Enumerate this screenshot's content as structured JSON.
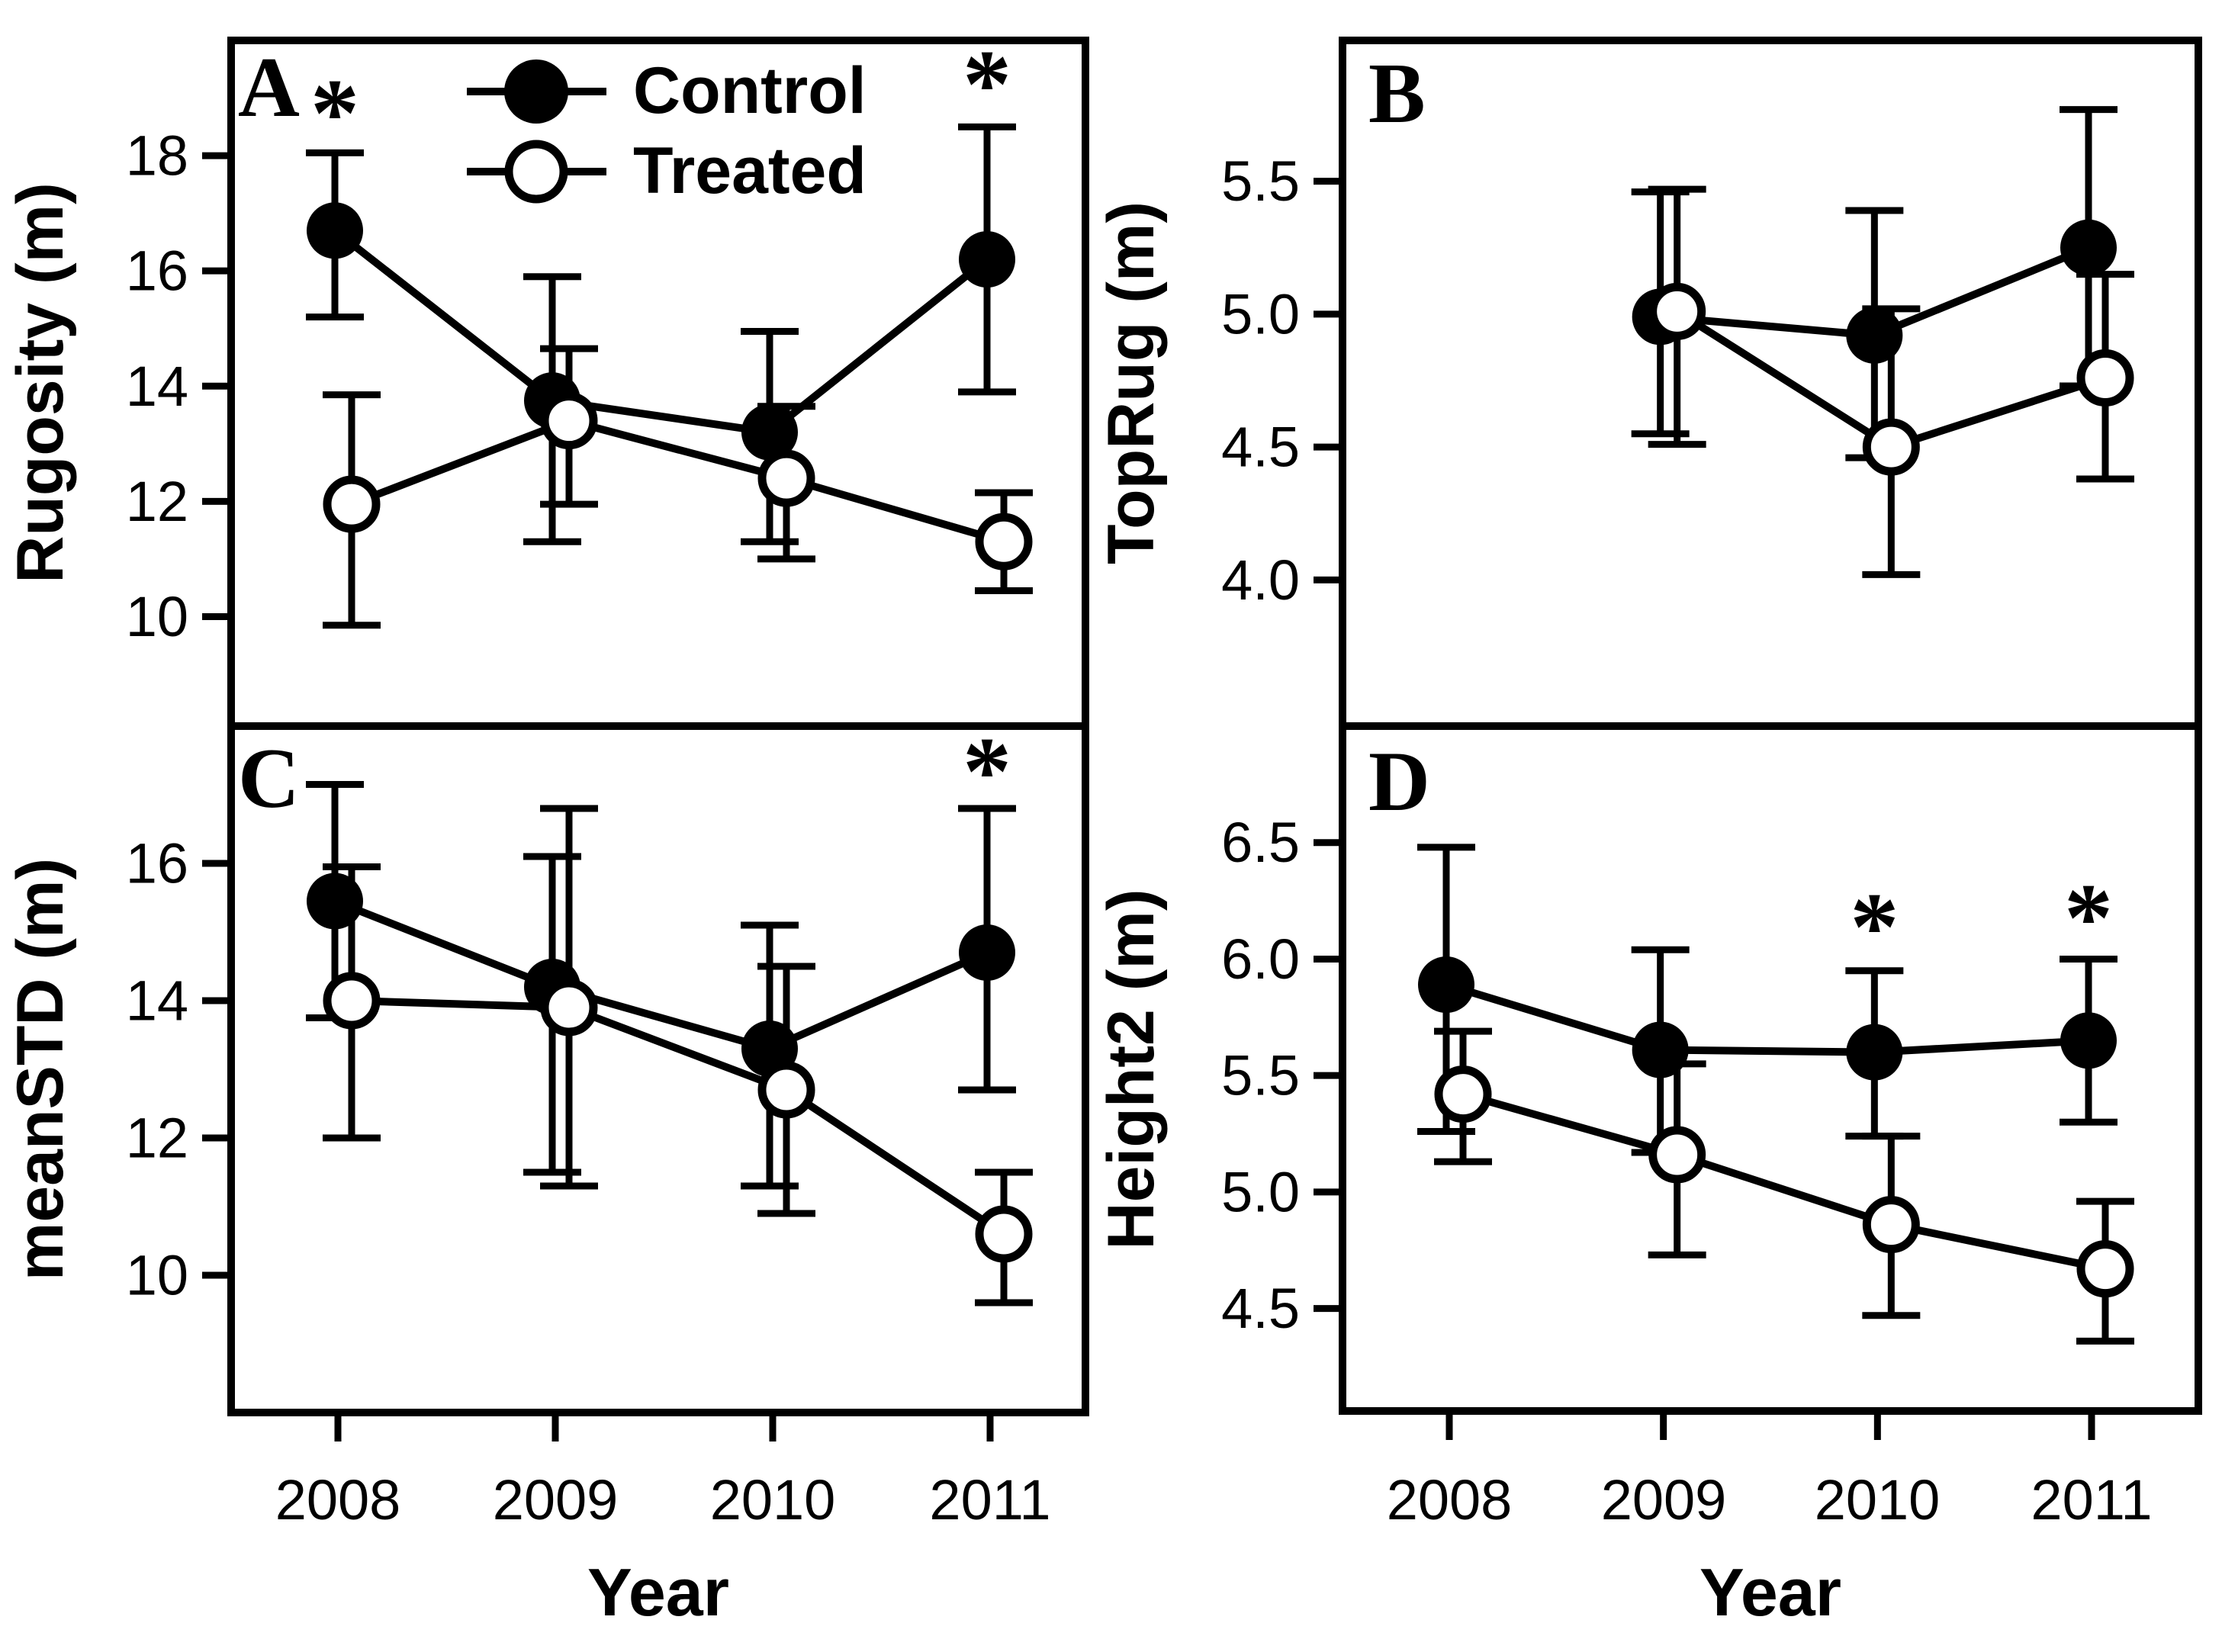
{
  "figure": {
    "background": "#ffffff",
    "ink": "#000000",
    "legend_entries": [
      {
        "label": "Control",
        "marker": "filled"
      },
      {
        "label": "Treated",
        "marker": "open"
      }
    ]
  },
  "chart_data": [
    {
      "id": "A",
      "panel_label": "A",
      "type": "line",
      "ylabel": "Rugosity (m)",
      "xlabel": "Year",
      "x": [
        2008,
        2009,
        2010,
        2011
      ],
      "xticklabels": [
        "2008",
        "2009",
        "2010",
        "2011"
      ],
      "yticks": [
        10,
        12,
        14,
        16,
        18
      ],
      "ylim": [
        8.1,
        20.0
      ],
      "grid": false,
      "legend_position": "top-center-inside",
      "series": [
        {
          "name": "Control",
          "marker": "filled",
          "values": [
            16.7,
            13.75,
            13.2,
            16.2
          ],
          "err_lo": [
            15.2,
            11.3,
            11.3,
            13.9
          ],
          "err_hi": [
            18.05,
            15.9,
            14.95,
            18.5
          ]
        },
        {
          "name": "Treated",
          "marker": "open",
          "values": [
            11.95,
            13.4,
            12.4,
            11.3
          ],
          "err_lo": [
            9.85,
            11.95,
            11.0,
            10.45
          ],
          "err_hi": [
            13.85,
            14.65,
            13.65,
            12.15
          ]
        }
      ],
      "asterisks": [
        {
          "year": 2008,
          "value": 18.75
        },
        {
          "year": 2011,
          "value": 19.25
        }
      ],
      "show_x_labels": false,
      "has_legend": true
    },
    {
      "id": "B",
      "panel_label": "B",
      "type": "line",
      "ylabel": "TopRug (m)",
      "xlabel": "Year",
      "x": [
        2008,
        2009,
        2010,
        2011
      ],
      "xticklabels": [
        "2008",
        "2009",
        "2010",
        "2011"
      ],
      "yticks": [
        4.0,
        4.5,
        5.0,
        5.5
      ],
      "ylim": [
        3.45,
        6.03
      ],
      "grid": false,
      "series": [
        {
          "name": "Control",
          "marker": "filled",
          "values": [
            null,
            4.99,
            4.92,
            5.25
          ],
          "err_lo": [
            null,
            4.55,
            4.46,
            4.73
          ],
          "err_hi": [
            null,
            5.46,
            5.39,
            5.77
          ]
        },
        {
          "name": "Treated",
          "marker": "open",
          "values": [
            null,
            5.01,
            4.5,
            4.76
          ],
          "err_lo": [
            null,
            4.51,
            4.02,
            4.38
          ],
          "err_hi": [
            null,
            5.47,
            5.02,
            5.15
          ]
        }
      ],
      "asterisks": [],
      "show_x_labels": false,
      "has_legend": false
    },
    {
      "id": "C",
      "panel_label": "C",
      "type": "line",
      "ylabel": "meanSTD (m)",
      "xlabel": "Year",
      "x": [
        2008,
        2009,
        2010,
        2011
      ],
      "xticklabels": [
        "2008",
        "2009",
        "2010",
        "2011"
      ],
      "yticks": [
        10,
        12,
        14,
        16
      ],
      "ylim": [
        8.0,
        18.0
      ],
      "grid": false,
      "series": [
        {
          "name": "Control",
          "marker": "filled",
          "values": [
            15.45,
            14.2,
            13.3,
            14.7
          ],
          "err_lo": [
            13.75,
            11.5,
            11.3,
            12.7
          ],
          "err_hi": [
            17.15,
            16.1,
            15.1,
            16.8
          ]
        },
        {
          "name": "Treated",
          "marker": "open",
          "values": [
            14.0,
            13.9,
            12.7,
            10.6
          ],
          "err_lo": [
            12.0,
            11.3,
            10.9,
            9.6
          ],
          "err_hi": [
            15.95,
            16.8,
            14.5,
            11.5
          ]
        }
      ],
      "asterisks": [
        {
          "year": 2011,
          "value": 17.35
        }
      ],
      "show_x_labels": true,
      "has_legend": false
    },
    {
      "id": "D",
      "panel_label": "D",
      "type": "line",
      "ylabel": "Height2 (m)",
      "xlabel": "Year",
      "x": [
        2008,
        2009,
        2010,
        2011
      ],
      "xticklabels": [
        "2008",
        "2009",
        "2010",
        "2011"
      ],
      "yticks": [
        4.5,
        5.0,
        5.5,
        6.0,
        6.5
      ],
      "ylim": [
        4.06,
        7.0
      ],
      "grid": false,
      "series": [
        {
          "name": "Control",
          "marker": "filled",
          "values": [
            5.89,
            5.61,
            5.6,
            5.65
          ],
          "err_lo": [
            5.26,
            5.17,
            5.24,
            5.3
          ],
          "err_hi": [
            6.48,
            6.04,
            5.95,
            6.0
          ]
        },
        {
          "name": "Treated",
          "marker": "open",
          "values": [
            5.42,
            5.16,
            4.86,
            4.67
          ],
          "err_lo": [
            5.13,
            4.73,
            4.47,
            4.36
          ],
          "err_hi": [
            5.69,
            5.55,
            5.24,
            4.96
          ]
        }
      ],
      "asterisks": [
        {
          "year": 2010,
          "value": 6.14
        },
        {
          "year": 2011,
          "value": 6.18
        }
      ],
      "show_x_labels": true,
      "has_legend": false
    }
  ]
}
